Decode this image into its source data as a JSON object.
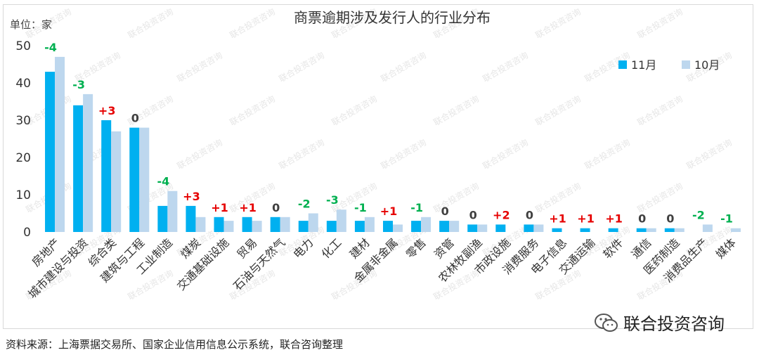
{
  "chart_data": {
    "type": "bar",
    "title": "商票逾期涉及发行人的行业分布",
    "unit_label": "单位：家",
    "ylim": [
      0,
      50
    ],
    "yticks": [
      0,
      10,
      20,
      30,
      40,
      50
    ],
    "grid": false,
    "legend_position": "top-right",
    "categories": [
      "房地产",
      "城市建设与投资",
      "综合类",
      "建筑与工程",
      "工业制造",
      "煤炭",
      "交通基础设施",
      "贸易",
      "石油与天然气",
      "电力",
      "化工",
      "建材",
      "金属非金属",
      "零售",
      "资管",
      "农林牧副渔",
      "市政设施",
      "消费服务",
      "电子信息",
      "交通运输",
      "软件",
      "通信",
      "医药制造",
      "消费品生产",
      "媒体"
    ],
    "series": [
      {
        "name": "11月",
        "color": "#00b0f0",
        "values": [
          43,
          34,
          30,
          28,
          7,
          7,
          4,
          4,
          4,
          3,
          3,
          3,
          3,
          3,
          3,
          2,
          2,
          2,
          1,
          1,
          1,
          1,
          1,
          0,
          0
        ]
      },
      {
        "name": "10月",
        "color": "#bdd7ee",
        "values": [
          47,
          37,
          27,
          28,
          11,
          4,
          3,
          3,
          4,
          5,
          6,
          4,
          2,
          4,
          3,
          2,
          0,
          2,
          0,
          0,
          0,
          1,
          1,
          2,
          1
        ]
      }
    ],
    "changes": [
      "-4",
      "-3",
      "+3",
      "0",
      "-4",
      "+3",
      "+1",
      "+1",
      "0",
      "-2",
      "-3",
      "-1",
      "+1",
      "-1",
      "0",
      "0",
      "+2",
      "0",
      "+1",
      "+1",
      "+1",
      "0",
      "0",
      "-2",
      "-1"
    ],
    "change_colors": {
      "positive": "#e60000",
      "negative": "#00b050",
      "zero": "#404040"
    }
  },
  "watermark": "联合投资咨询",
  "source": "资料来源：上海票据交易所、国家企业信用信息公示系统，联合咨询整理",
  "brand": {
    "name": "联合投资咨询",
    "icon": "wechat-icon"
  }
}
